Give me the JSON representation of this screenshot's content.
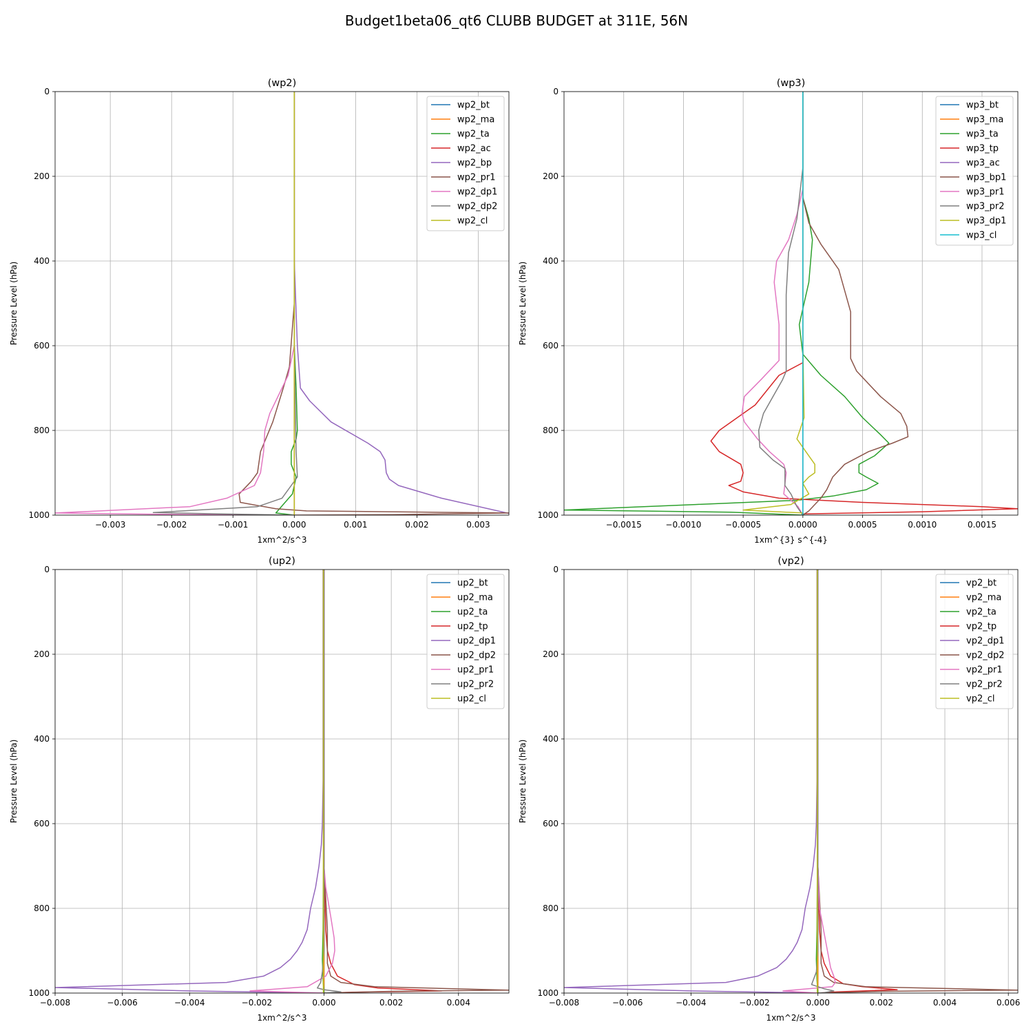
{
  "suptitle": "Budget1beta06_qt6 CLUBB BUDGET at 311E, 56N",
  "colors": [
    "#1f77b4",
    "#ff7f0e",
    "#2ca02c",
    "#d62728",
    "#9467bd",
    "#8c564b",
    "#e377c2",
    "#7f7f7f",
    "#bcbd22",
    "#17becf"
  ],
  "chart_data": [
    {
      "type": "line",
      "title": "(wp2)",
      "xlabel": "1xm^2/s^3",
      "ylabel": "Pressure Level (hPa)",
      "xlim": [
        -0.0039,
        0.0035
      ],
      "ylim": [
        1000,
        0
      ],
      "xticks": [
        -0.003,
        -0.002,
        -0.001,
        0.0,
        0.001,
        0.002,
        0.003
      ],
      "xticklabels": [
        "−0.003",
        "−0.002",
        "−0.001",
        "0.000",
        "0.001",
        "0.002",
        "0.003"
      ],
      "yticks": [
        0,
        200,
        400,
        600,
        800,
        1000
      ],
      "yticklabels": [
        "0",
        "200",
        "400",
        "600",
        "800",
        "1000"
      ],
      "grid": true,
      "legend": "top-right",
      "series": [
        {
          "name": "wp2_bt",
          "x": [
            0,
            0,
            0
          ],
          "y": [
            0,
            500,
            1000
          ]
        },
        {
          "name": "wp2_ma",
          "x": [
            0,
            0,
            0
          ],
          "y": [
            0,
            500,
            1000
          ]
        },
        {
          "name": "wp2_ta",
          "x": [
            0,
            0,
            3e-05,
            5e-05,
            3e-05,
            -5e-05,
            -5e-05,
            3e-05,
            -3e-05,
            -0.0003,
            0
          ],
          "y": [
            0,
            600,
            700,
            800,
            820,
            850,
            880,
            910,
            950,
            995,
            1000
          ]
        },
        {
          "name": "wp2_ac",
          "x": [
            0,
            0,
            0
          ],
          "y": [
            0,
            500,
            1000
          ]
        },
        {
          "name": "wp2_bp",
          "x": [
            0,
            0,
            5e-05,
            0.0001,
            0.00025,
            0.0006,
            0.0012,
            0.0014,
            0.00148,
            0.0015,
            0.00155,
            0.0017,
            0.0024,
            0.0035
          ],
          "y": [
            0,
            400,
            600,
            700,
            730,
            780,
            830,
            850,
            870,
            900,
            915,
            930,
            960,
            996
          ]
        },
        {
          "name": "wp2_pr1",
          "x": [
            0,
            0,
            -8e-05,
            -0.00018,
            -0.00035,
            -0.00055,
            -0.0006,
            -0.0007,
            -0.0009,
            -0.00088,
            -0.0003,
            0.0002,
            0.0035,
            0.0016,
            0
          ],
          "y": [
            0,
            500,
            650,
            700,
            780,
            850,
            900,
            920,
            950,
            970,
            985,
            990,
            995,
            999,
            1000
          ]
        },
        {
          "name": "wp2_dp1",
          "x": [
            0,
            0,
            -0.0001,
            -0.0002,
            -0.0004,
            -0.00048,
            -0.0005,
            -0.00055,
            -0.00065,
            -0.0011,
            -0.0017,
            -0.0039,
            -0.0022,
            0
          ],
          "y": [
            0,
            600,
            670,
            700,
            760,
            800,
            850,
            900,
            930,
            960,
            980,
            995,
            998,
            1000
          ]
        },
        {
          "name": "wp2_dp2",
          "x": [
            0,
            0,
            3e-05,
            5e-05,
            -5e-05,
            -0.0002,
            -0.0006,
            -0.0023,
            -0.0012,
            0
          ],
          "y": [
            0,
            600,
            850,
            910,
            930,
            960,
            980,
            994,
            997,
            1000
          ]
        },
        {
          "name": "wp2_cl",
          "x": [
            0,
            0,
            0
          ],
          "y": [
            0,
            500,
            1000
          ]
        }
      ]
    },
    {
      "type": "line",
      "title": "(wp3)",
      "xlabel": "1xm^{3} s^{-4}",
      "ylabel": "Pressure Level (hPa)",
      "xlim": [
        -0.002,
        0.0018
      ],
      "ylim": [
        1000,
        0
      ],
      "xticks": [
        -0.0015,
        -0.001,
        -0.0005,
        0.0,
        0.0005,
        0.001,
        0.0015
      ],
      "xticklabels": [
        "−0.0015",
        "−0.0010",
        "−0.0005",
        "0.0000",
        "0.0005",
        "0.0010",
        "0.0015"
      ],
      "yticks": [
        0,
        200,
        400,
        600,
        800,
        1000
      ],
      "yticklabels": [
        "0",
        "200",
        "400",
        "600",
        "800",
        "1000"
      ],
      "grid": true,
      "legend": "top-right",
      "series": [
        {
          "name": "wp3_bt",
          "x": [
            0,
            0,
            0
          ],
          "y": [
            0,
            500,
            1000
          ]
        },
        {
          "name": "wp3_ma",
          "x": [
            0,
            0,
            0
          ],
          "y": [
            0,
            500,
            1000
          ]
        },
        {
          "name": "wp3_ta",
          "x": [
            0,
            0,
            5e-05,
            8e-05,
            5e-05,
            -3e-05,
            0,
            0.00015,
            0.00035,
            0.0005,
            0.00065,
            0.00072,
            0.0006,
            0.00047,
            0.00047,
            0.00053,
            0.00063,
            0.00053,
            0.00025,
            -5e-05,
            -0.0009,
            -0.002,
            -0.0006,
            0
          ],
          "y": [
            0,
            250,
            300,
            350,
            450,
            550,
            620,
            670,
            720,
            770,
            810,
            830,
            860,
            880,
            900,
            910,
            925,
            940,
            955,
            965,
            975,
            988,
            993,
            1000
          ]
        },
        {
          "name": "wp3_tp",
          "x": [
            0,
            0,
            -0.0002,
            -0.0004,
            -0.0007,
            -0.00077,
            -0.0007,
            -0.00052,
            -0.0005,
            -0.00052,
            -0.00062,
            -0.0005,
            -0.0002,
            0.0005,
            0.0015,
            0.0018,
            0.001,
            0
          ],
          "y": [
            0,
            640,
            670,
            740,
            800,
            825,
            850,
            880,
            900,
            920,
            930,
            945,
            960,
            970,
            980,
            985,
            992,
            997
          ]
        },
        {
          "name": "wp3_ac",
          "x": [
            0,
            0,
            0
          ],
          "y": [
            0,
            500,
            1000
          ]
        },
        {
          "name": "wp3_bp1",
          "x": [
            0,
            0,
            5e-05,
            0.00015,
            0.0003,
            0.0004,
            0.0004,
            0.00045,
            0.00065,
            0.00082,
            0.00087,
            0.00088,
            0.00075,
            0.00055,
            0.00035,
            0.00025,
            0.0002,
            0.00015,
            5e-05,
            0
          ],
          "y": [
            0,
            250,
            310,
            360,
            420,
            520,
            630,
            660,
            720,
            760,
            790,
            815,
            830,
            850,
            880,
            910,
            940,
            960,
            990,
            1000
          ]
        },
        {
          "name": "wp3_pr1",
          "x": [
            0,
            0,
            -5e-05,
            -0.00012,
            -0.00022,
            -0.00024,
            -0.0002,
            -0.0002,
            -0.0002,
            -0.00035,
            -0.00049,
            -0.00051,
            -0.00049,
            -0.00038,
            -0.00028,
            -0.00016,
            -0.00014,
            -0.00016,
            -4e-05,
            0
          ],
          "y": [
            0,
            230,
            290,
            350,
            400,
            450,
            550,
            600,
            635,
            680,
            720,
            760,
            780,
            820,
            850,
            880,
            900,
            950,
            980,
            1000
          ]
        },
        {
          "name": "wp3_pr2",
          "x": [
            0,
            0,
            -5e-05,
            -0.00012,
            -0.00014,
            -0.00014,
            -0.00014,
            -0.00017,
            -0.00025,
            -0.00033,
            -0.00037,
            -0.00036,
            -0.00025,
            -0.00015,
            -0.00015,
            -0.0001,
            -5e-05,
            0
          ],
          "y": [
            0,
            180,
            300,
            380,
            480,
            600,
            660,
            680,
            720,
            760,
            800,
            840,
            870,
            890,
            930,
            950,
            980,
            1000
          ]
        },
        {
          "name": "wp3_dp1",
          "x": [
            0,
            0,
            1e-05,
            -5e-05,
            0,
            5e-05,
            0.0001,
            0.0001,
            5e-05,
            0,
            5e-05,
            -0.0001,
            -0.0005,
            0,
            0
          ],
          "y": [
            0,
            600,
            770,
            820,
            840,
            860,
            880,
            900,
            910,
            925,
            950,
            975,
            988,
            995,
            1000
          ]
        },
        {
          "name": "wp3_cl",
          "x": [
            0,
            0,
            0
          ],
          "y": [
            0,
            500,
            1000
          ]
        }
      ]
    },
    {
      "type": "line",
      "title": "(up2)",
      "xlabel": "1xm^2/s^3",
      "ylabel": "Pressure Level (hPa)",
      "xlim": [
        -0.008,
        0.0055
      ],
      "ylim": [
        1000,
        0
      ],
      "xticks": [
        -0.008,
        -0.006,
        -0.004,
        -0.002,
        0.0,
        0.002,
        0.004
      ],
      "xticklabels": [
        "−0.008",
        "−0.006",
        "−0.004",
        "−0.002",
        "0.000",
        "0.002",
        "0.004"
      ],
      "yticks": [
        0,
        200,
        400,
        600,
        800,
        1000
      ],
      "yticklabels": [
        "0",
        "200",
        "400",
        "600",
        "800",
        "1000"
      ],
      "grid": true,
      "legend": "top-right",
      "series": [
        {
          "name": "up2_bt",
          "x": [
            0,
            0,
            0
          ],
          "y": [
            0,
            500,
            1000
          ]
        },
        {
          "name": "up2_ma",
          "x": [
            0,
            0,
            0
          ],
          "y": [
            0,
            500,
            1000
          ]
        },
        {
          "name": "up2_ta",
          "x": [
            0,
            0,
            -3e-05,
            -5e-05,
            -3e-05,
            0
          ],
          "y": [
            0,
            500,
            850,
            920,
            970,
            1000
          ]
        },
        {
          "name": "up2_tp",
          "x": [
            0,
            0,
            5e-05,
            0.0001,
            0.0002,
            0.0004,
            0.0009,
            0.0016,
            0.0035,
            0.0008,
            0
          ],
          "y": [
            0,
            700,
            850,
            900,
            930,
            960,
            980,
            988,
            995,
            998,
            1000
          ]
        },
        {
          "name": "up2_dp1",
          "x": [
            -3e-05,
            -3e-05,
            -5e-05,
            -8e-05,
            -0.00015,
            -0.00025,
            -0.0004,
            -0.0005,
            -0.00065,
            -0.0008,
            -0.001,
            -0.0013,
            -0.0018,
            -0.0029,
            -0.008,
            -0.004,
            0
          ],
          "y": [
            0,
            500,
            600,
            650,
            700,
            750,
            800,
            850,
            880,
            900,
            920,
            940,
            960,
            975,
            987,
            995,
            1000
          ]
        },
        {
          "name": "up2_dp2",
          "x": [
            0,
            0,
            0.0001,
            0.0001,
            0.0002,
            0.0005,
            0.0015,
            0.0055,
            0.002,
            0
          ],
          "y": [
            0,
            700,
            850,
            930,
            960,
            975,
            985,
            993,
            996,
            1000
          ]
        },
        {
          "name": "up2_pr1",
          "x": [
            0,
            0,
            5e-05,
            0.0002,
            0.0003,
            0.00032,
            0.00025,
            5e-05,
            -0.0005,
            -0.0022,
            0
          ],
          "y": [
            0,
            700,
            750,
            820,
            870,
            900,
            930,
            960,
            985,
            995,
            1000
          ]
        },
        {
          "name": "up2_pr2",
          "x": [
            0,
            0,
            -5e-05,
            -0.0001,
            -0.0002,
            0,
            0.0005,
            0.0002,
            0
          ],
          "y": [
            0,
            900,
            950,
            975,
            988,
            992,
            997,
            999,
            1000
          ]
        },
        {
          "name": "up2_cl",
          "x": [
            -2e-05,
            -2e-05,
            -2e-05
          ],
          "y": [
            0,
            500,
            1000
          ]
        }
      ]
    },
    {
      "type": "line",
      "title": "(vp2)",
      "xlabel": "1xm^2/s^3",
      "ylabel": "Pressure Level (hPa)",
      "xlim": [
        -0.008,
        0.0063
      ],
      "ylim": [
        1000,
        0
      ],
      "xticks": [
        -0.008,
        -0.006,
        -0.004,
        -0.002,
        0.0,
        0.002,
        0.004,
        0.006
      ],
      "xticklabels": [
        "−0.008",
        "−0.006",
        "−0.004",
        "−0.002",
        "0.000",
        "0.002",
        "0.004",
        "0.006"
      ],
      "yticks": [
        0,
        200,
        400,
        600,
        800,
        1000
      ],
      "yticklabels": [
        "0",
        "200",
        "400",
        "600",
        "800",
        "1000"
      ],
      "grid": true,
      "legend": "top-right",
      "series": [
        {
          "name": "vp2_bt",
          "x": [
            0,
            0,
            0
          ],
          "y": [
            0,
            500,
            1000
          ]
        },
        {
          "name": "vp2_ma",
          "x": [
            0,
            0,
            0
          ],
          "y": [
            0,
            500,
            1000
          ]
        },
        {
          "name": "vp2_ta",
          "x": [
            0,
            0,
            -3e-05,
            -5e-05,
            -3e-05,
            0
          ],
          "y": [
            0,
            500,
            850,
            920,
            970,
            1000
          ]
        },
        {
          "name": "vp2_tp",
          "x": [
            0,
            0,
            5e-05,
            0.0001,
            0.0002,
            0.0004,
            0.0008,
            0.0014,
            0.0025,
            0.0006,
            0
          ],
          "y": [
            0,
            700,
            850,
            900,
            930,
            960,
            978,
            985,
            992,
            997,
            1000
          ]
        },
        {
          "name": "vp2_dp1",
          "x": [
            -3e-05,
            -3e-05,
            -5e-05,
            -8e-05,
            -0.00015,
            -0.00025,
            -0.0004,
            -0.0005,
            -0.00065,
            -0.0008,
            -0.001,
            -0.0013,
            -0.0019,
            -0.0029,
            -0.008,
            -0.004,
            0
          ],
          "y": [
            0,
            500,
            600,
            650,
            700,
            750,
            800,
            850,
            880,
            900,
            920,
            940,
            960,
            975,
            987,
            995,
            1000
          ]
        },
        {
          "name": "vp2_dp2",
          "x": [
            0,
            0,
            0.0001,
            0.0001,
            0.0002,
            0.0005,
            0.0015,
            0.0063,
            0.002,
            0
          ],
          "y": [
            0,
            700,
            850,
            930,
            960,
            975,
            985,
            993,
            996,
            1000
          ]
        },
        {
          "name": "vp2_pr1",
          "x": [
            0,
            0,
            5e-05,
            0.0002,
            0.0003,
            0.0004,
            0.0005,
            0.00055,
            0.00045,
            -0.0011,
            0
          ],
          "y": [
            0,
            700,
            800,
            860,
            900,
            940,
            960,
            975,
            985,
            995,
            1000
          ]
        },
        {
          "name": "vp2_pr2",
          "x": [
            0,
            0,
            -5e-05,
            -0.0002,
            0.0002,
            0.0005,
            0.0002,
            0
          ],
          "y": [
            0,
            900,
            950,
            980,
            990,
            995,
            999,
            1000
          ]
        },
        {
          "name": "vp2_cl",
          "x": [
            -2e-05,
            -2e-05,
            -2e-05
          ],
          "y": [
            0,
            500,
            1000
          ]
        }
      ]
    }
  ]
}
